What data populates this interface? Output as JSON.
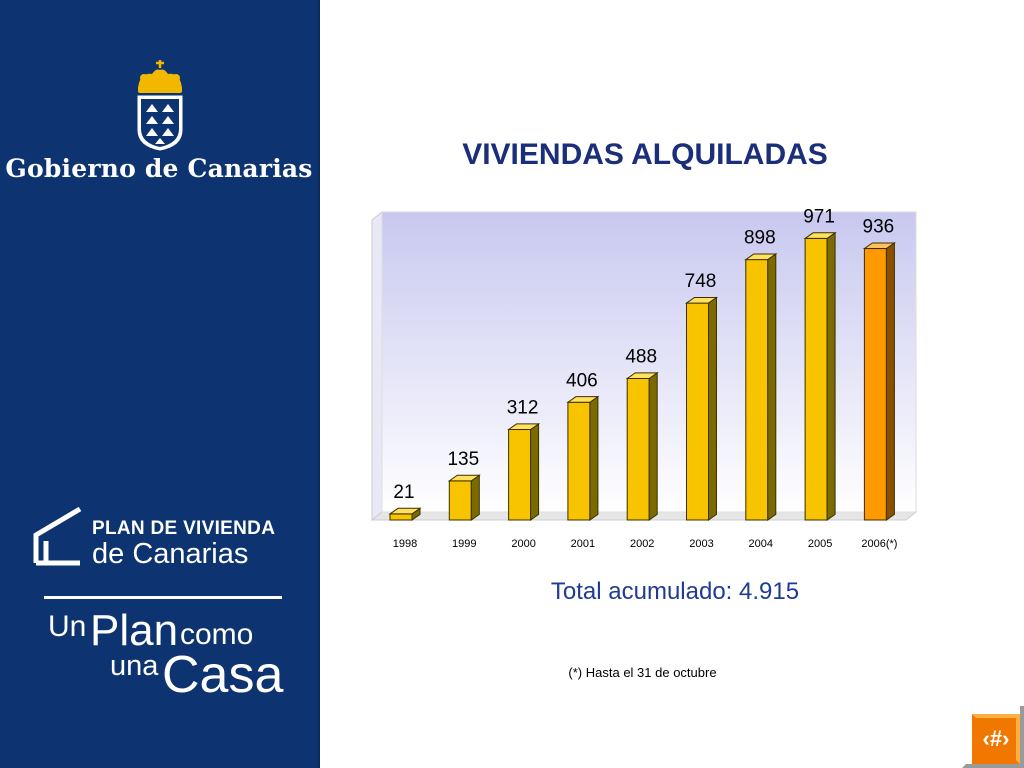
{
  "sidebar": {
    "organization": "Gobierno de Canarias",
    "crest_icon": "coat-of-arms-icon",
    "plan": {
      "line1": "PLAN DE VIVIENDA",
      "line2": "de Canarias"
    },
    "slogan": {
      "un": "Un",
      "plan": "Plan",
      "como": "como",
      "una": "una",
      "casa": "Casa"
    }
  },
  "slide": {
    "title": "VIVIENDAS ALQUILADAS",
    "total": "Total acumulado: 4.915",
    "footnote": "(*) Hasta el 31 de octubre",
    "nav_icon": "slide-number-icon",
    "nav_label": "‹#›"
  },
  "colors": {
    "sidebar": "#0d3470",
    "bar": "#f8c400",
    "bar_last": "#ff9900",
    "plot_bg_top": "#c8c8f0",
    "title": "#1a2e7a"
  },
  "chart_data": {
    "type": "bar",
    "categories": [
      "1998",
      "1999",
      "2000",
      "2001",
      "2002",
      "2003",
      "2004",
      "2005",
      "2006(*)"
    ],
    "values": [
      21,
      135,
      312,
      406,
      488,
      748,
      898,
      971,
      936
    ],
    "data_labels": [
      "21",
      "135",
      "312",
      "406",
      "488",
      "748",
      "898",
      "971",
      "936"
    ],
    "title": "",
    "xlabel": "",
    "ylabel": "",
    "ylim": [
      0,
      1000
    ],
    "grid": false,
    "legend": "none"
  }
}
